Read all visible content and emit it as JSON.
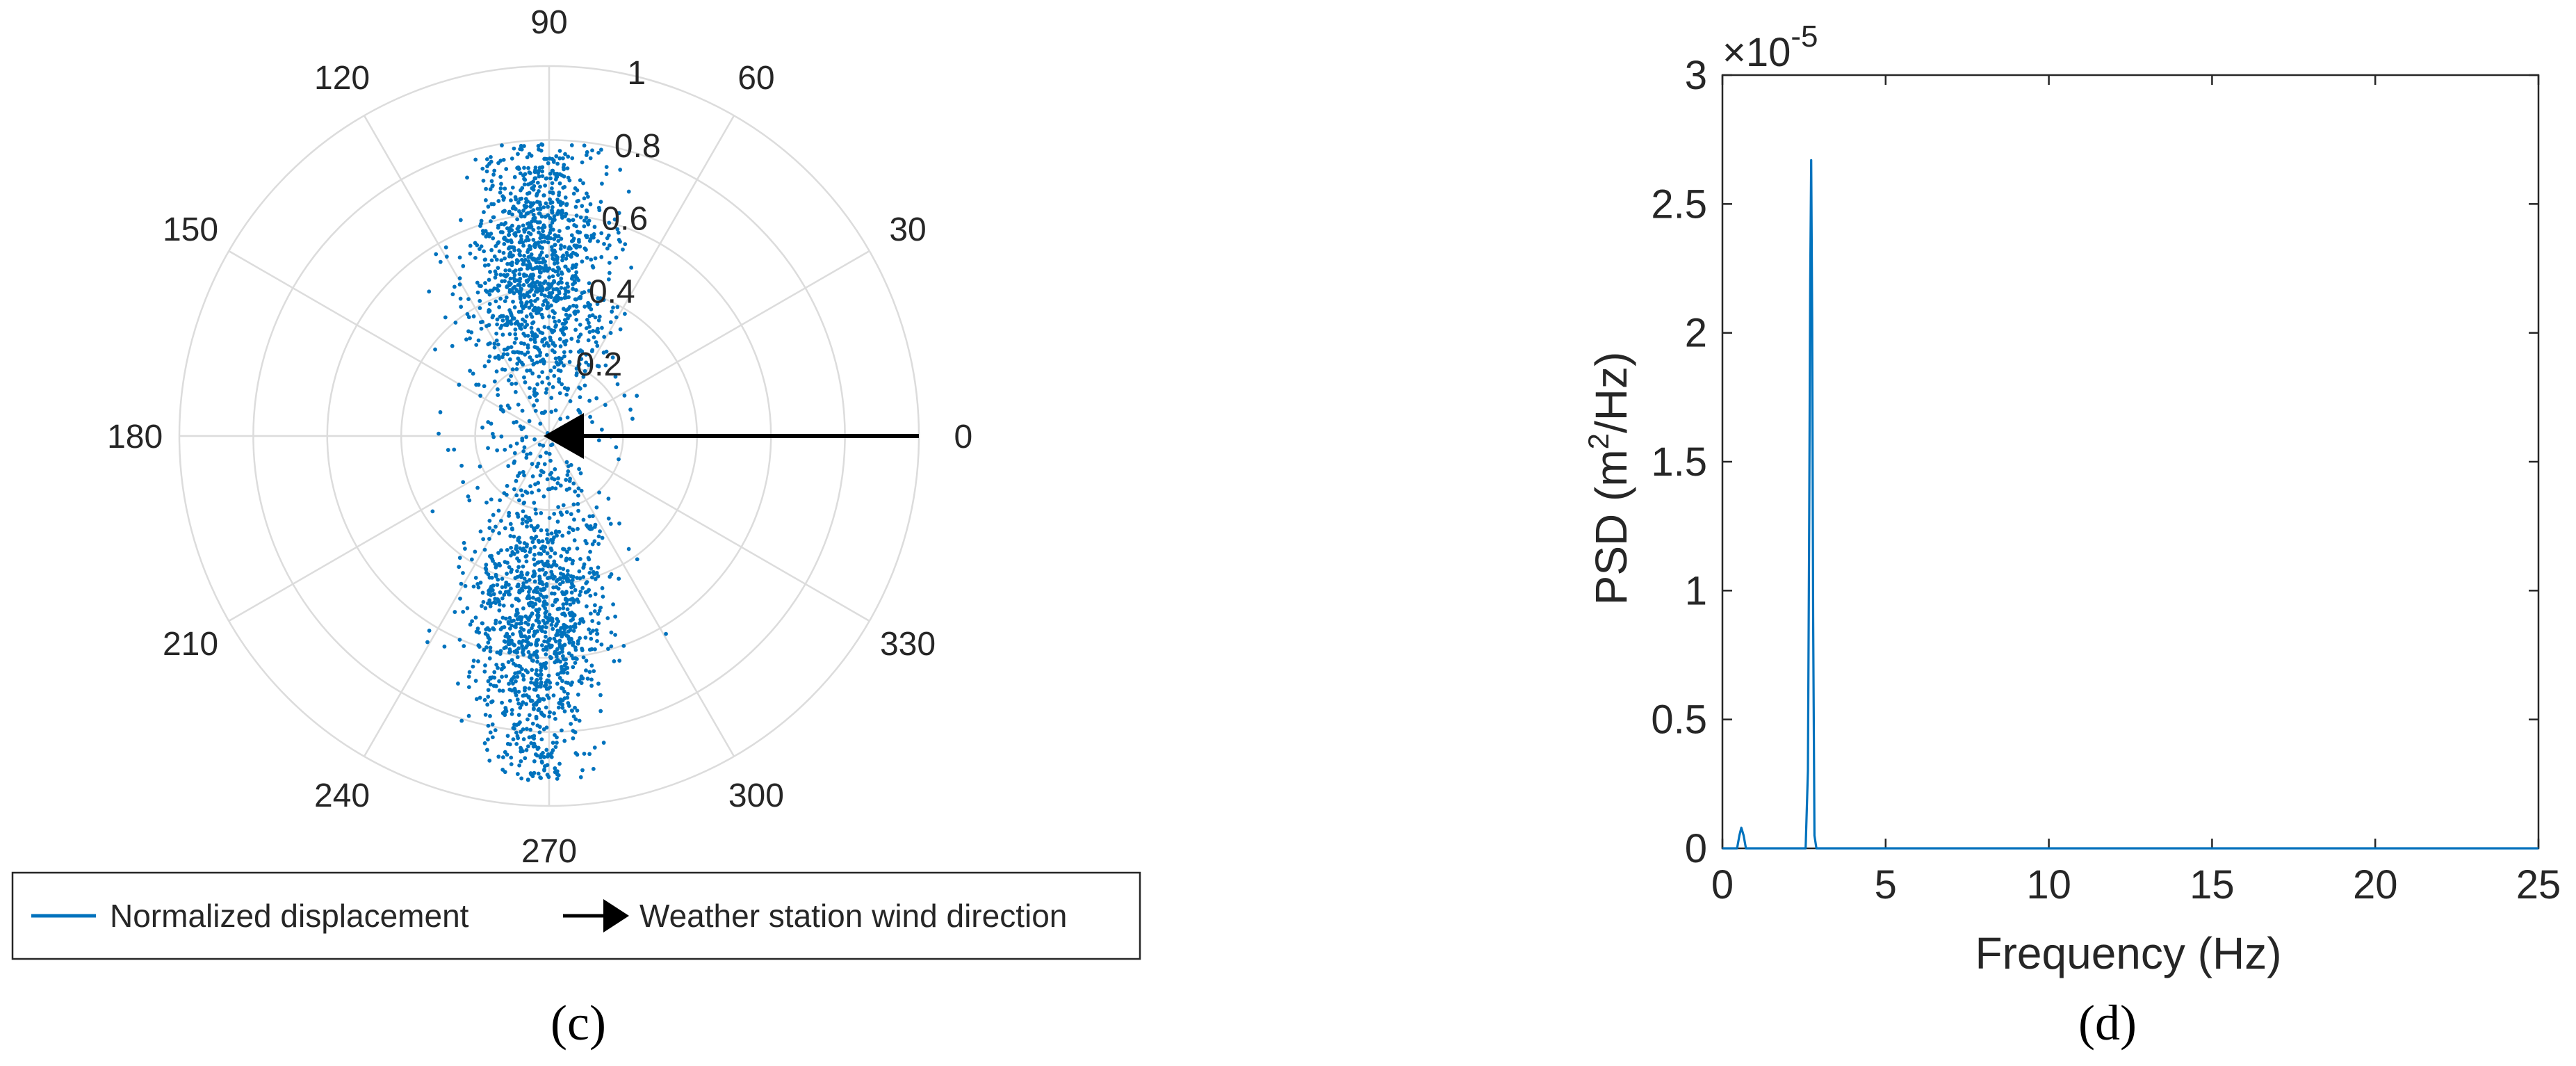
{
  "chart_data": [
    {
      "type": "scatter",
      "subtype": "polar",
      "panel_label": "(c)",
      "angle_ticks": [
        "0",
        "30",
        "60",
        "90",
        "120",
        "150",
        "180",
        "210",
        "240",
        "270",
        "300",
        "330"
      ],
      "angle_tick_values": [
        0,
        30,
        60,
        90,
        120,
        150,
        180,
        210,
        240,
        270,
        300,
        330
      ],
      "radial_ticks": [
        "0.2",
        "0.4",
        "0.6",
        "0.8",
        "1"
      ],
      "radial_tick_values": [
        0.2,
        0.4,
        0.6,
        0.8,
        1
      ],
      "rlim": [
        0,
        1
      ],
      "grid": true,
      "series": [
        {
          "name": "Normalized displacement",
          "kind": "scatter",
          "color": "#0072BD",
          "approx_count": 2500,
          "cluster_x_mean": -0.03,
          "cluster_x_sd": 0.095,
          "cluster_y_range": [
            -0.93,
            0.79
          ],
          "dense_centers_y": [
            0.45,
            -0.5
          ],
          "points": [
            [
              -0.1,
              0.75
            ],
            [
              0.02,
              0.7
            ],
            [
              -0.05,
              0.62
            ],
            [
              0.08,
              0.55
            ],
            [
              -0.12,
              0.48
            ],
            [
              0.0,
              0.4
            ],
            [
              -0.08,
              0.3
            ],
            [
              0.1,
              0.22
            ],
            [
              -0.04,
              0.12
            ],
            [
              0.05,
              0.05
            ],
            [
              -0.06,
              -0.05
            ],
            [
              0.07,
              -0.15
            ],
            [
              -0.1,
              -0.25
            ],
            [
              0.02,
              -0.35
            ],
            [
              -0.05,
              -0.45
            ],
            [
              0.06,
              -0.55
            ],
            [
              -0.09,
              -0.62
            ],
            [
              0.03,
              -0.72
            ],
            [
              -0.02,
              -0.82
            ],
            [
              0.12,
              -0.9
            ]
          ]
        },
        {
          "name": "Weather station wind direction",
          "kind": "arrow",
          "color": "#000000",
          "from_angle_deg": 0,
          "from_r": 1,
          "to_r": 0
        }
      ],
      "legend": {
        "position": "bottom",
        "entries": [
          "Normalized displacement",
          "Weather station wind direction"
        ]
      }
    },
    {
      "type": "line",
      "panel_label": "(d)",
      "xlabel": "Frequency (Hz)",
      "ylabel_main": "PSD (m",
      "ylabel_sup": "2",
      "ylabel_tail": "/Hz)",
      "exponent_base": "×10",
      "exponent_power": "-5",
      "xlim": [
        0,
        25
      ],
      "ylim": [
        0,
        3
      ],
      "y_scale_factor": 1e-05,
      "x_ticks": [
        "0",
        "5",
        "10",
        "15",
        "20",
        "25"
      ],
      "x_tick_values": [
        0,
        5,
        10,
        15,
        20,
        25
      ],
      "y_ticks": [
        "0",
        "0.5",
        "1",
        "1.5",
        "2",
        "2.5",
        "3"
      ],
      "y_tick_values": [
        0,
        0.5,
        1,
        1.5,
        2,
        2.5,
        3
      ],
      "grid": false,
      "series": [
        {
          "color": "#0072BD",
          "x": [
            0,
            0.45,
            0.52,
            0.58,
            0.65,
            0.72,
            0.8,
            2.55,
            2.62,
            2.66,
            2.69,
            2.72,
            2.75,
            2.78,
            2.82,
            2.88,
            3.0,
            25
          ],
          "y": [
            0,
            0,
            0.05,
            0.08,
            0.05,
            0,
            0,
            0,
            0.3,
            1.3,
            2.2,
            2.67,
            2.05,
            0.9,
            0.05,
            0,
            0,
            0
          ]
        }
      ]
    }
  ]
}
